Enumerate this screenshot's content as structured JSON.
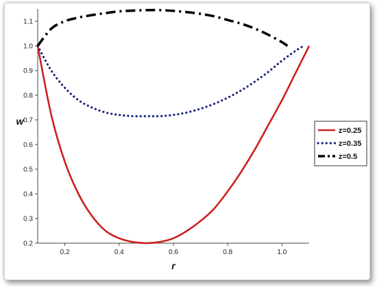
{
  "chart_data": {
    "type": "line",
    "title": "",
    "xlabel": "r",
    "ylabel": "w",
    "xlim": [
      0.1,
      1.1
    ],
    "ylim": [
      0.2,
      1.15
    ],
    "xticks": [
      "0.2",
      "0.4",
      "0.6",
      "0.8",
      "1.0"
    ],
    "xtick_values": [
      0.2,
      0.4,
      0.6,
      0.8,
      1.0
    ],
    "yticks": [
      "0.2",
      "0.3",
      "0.4",
      "0.5",
      "0.6",
      "0.7",
      "0.8",
      "0.9",
      "1.0",
      "1.1"
    ],
    "ytick_values": [
      0.2,
      0.3,
      0.4,
      0.5,
      0.6,
      0.7,
      0.8,
      0.9,
      1.0,
      1.1
    ],
    "grid": false,
    "legend_position": "right",
    "series": [
      {
        "name": "z=0.25",
        "color": "#cc1f1f",
        "style": "solid",
        "x": [
          0.1,
          0.15,
          0.2,
          0.25,
          0.3,
          0.35,
          0.4,
          0.45,
          0.5,
          0.55,
          0.6,
          0.65,
          0.7,
          0.75,
          0.8,
          0.85,
          0.9,
          0.95,
          1.0,
          1.05,
          1.1
        ],
        "y": [
          1.0,
          0.72,
          0.53,
          0.4,
          0.31,
          0.25,
          0.22,
          0.205,
          0.2,
          0.205,
          0.22,
          0.25,
          0.29,
          0.34,
          0.41,
          0.49,
          0.58,
          0.68,
          0.78,
          0.89,
          1.0
        ]
      },
      {
        "name": "z=0.35",
        "color": "#1a237e",
        "style": "dotted",
        "x": [
          0.1,
          0.15,
          0.2,
          0.25,
          0.3,
          0.35,
          0.4,
          0.45,
          0.5,
          0.55,
          0.6,
          0.65,
          0.7,
          0.75,
          0.8,
          0.85,
          0.9,
          0.95,
          1.0,
          1.05,
          1.08
        ],
        "y": [
          1.0,
          0.9,
          0.83,
          0.78,
          0.75,
          0.73,
          0.72,
          0.715,
          0.715,
          0.715,
          0.72,
          0.73,
          0.745,
          0.765,
          0.79,
          0.82,
          0.855,
          0.895,
          0.94,
          0.98,
          1.0
        ]
      },
      {
        "name": "z=0.5",
        "color": "#000000",
        "style": "dashdot",
        "x": [
          0.1,
          0.15,
          0.2,
          0.25,
          0.3,
          0.35,
          0.4,
          0.45,
          0.5,
          0.55,
          0.6,
          0.65,
          0.7,
          0.75,
          0.8,
          0.85,
          0.9,
          0.95,
          1.0,
          1.02
        ],
        "y": [
          1.0,
          1.07,
          1.1,
          1.115,
          1.125,
          1.133,
          1.14,
          1.143,
          1.145,
          1.145,
          1.142,
          1.137,
          1.13,
          1.12,
          1.105,
          1.09,
          1.07,
          1.045,
          1.015,
          1.0
        ]
      }
    ]
  }
}
